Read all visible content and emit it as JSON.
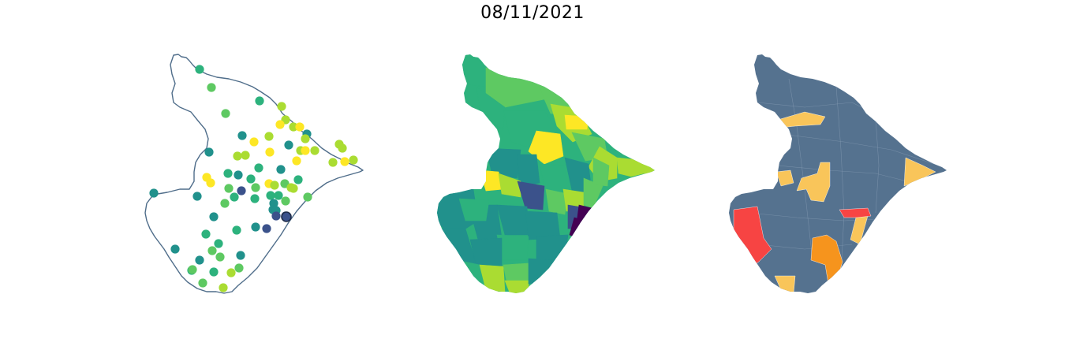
{
  "title": "08/11/2021",
  "colors": {
    "outline": "#4f6d8a",
    "viridis": [
      "#440154",
      "#3b528b",
      "#21918c",
      "#2db27d",
      "#5ec962",
      "#aadc32",
      "#fde725"
    ],
    "classes": {
      "base": "#55728f",
      "light_orange": "#f9c55a",
      "orange": "#f6941d",
      "red": "#f74443"
    }
  },
  "panels": [
    {
      "name": "station-points-map"
    },
    {
      "name": "choropleth-gradient-map"
    },
    {
      "name": "choropleth-classified-map"
    }
  ]
}
